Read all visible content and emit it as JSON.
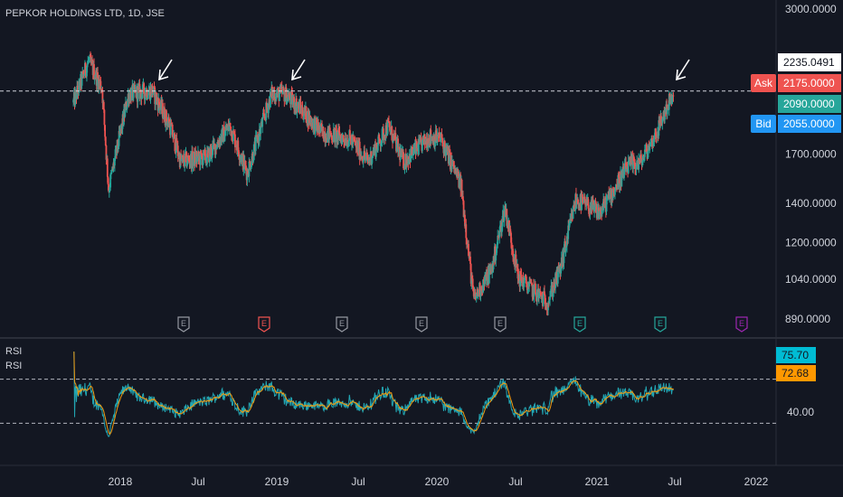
{
  "header": {
    "symbol_title": "PEPKOR HOLDINGS LTD, 1D, JSE"
  },
  "rsi_pane": {
    "label_1": "RSI",
    "label_2": "RSI"
  },
  "colors": {
    "background": "#131722",
    "up": "#26a69a",
    "down": "#ef5350",
    "rsi_line": "#22a6b3",
    "rsi_signal": "#f39c12",
    "ask": "#ef5350",
    "bid": "#2196f3",
    "last": "#26a69a"
  },
  "price_axis": {
    "ticks": [
      "3000.0000",
      "1700.0000",
      "1400.0000",
      "1200.0000",
      "1040.0000",
      "890.0000"
    ],
    "tick_values": [
      3000,
      1700,
      1400,
      1200,
      1040,
      890
    ],
    "labels": [
      {
        "kind": "crosshair",
        "text": "2235.0491",
        "value": 2235.0491
      },
      {
        "kind": "ask",
        "label": "Ask",
        "text": "2175.0000",
        "value": 2175
      },
      {
        "kind": "last",
        "text": "2090.0000",
        "value": 2090
      },
      {
        "kind": "bid",
        "label": "Bid",
        "text": "2055.0000",
        "value": 2055
      }
    ],
    "partial_hidden_tick": "2235.0000"
  },
  "rsi_axis": {
    "ticks": [
      "40.00"
    ],
    "tick_values": [
      40
    ],
    "current_rsi": "75.70",
    "current_signal": "72.68",
    "levels": [
      70,
      30
    ]
  },
  "time_axis": {
    "labels": [
      "2018",
      "Jul",
      "2019",
      "Jul",
      "2020",
      "Jul",
      "2021",
      "Jul",
      "2022"
    ]
  },
  "earnings_markers": [
    {
      "label": "E",
      "color": "#9598a1"
    },
    {
      "label": "E",
      "color": "#ef5350"
    },
    {
      "label": "E",
      "color": "#9598a1"
    },
    {
      "label": "E",
      "color": "#9598a1"
    },
    {
      "label": "E",
      "color": "#9598a1"
    },
    {
      "label": "E",
      "color": "#26a69a"
    },
    {
      "label": "E",
      "color": "#26a69a"
    },
    {
      "label": "E",
      "color": "#9c27b0"
    }
  ],
  "annotations": {
    "resistance_level": 2175,
    "arrows": 3
  },
  "chart_data": {
    "type": "candlestick",
    "x_range": [
      "2017-09",
      "2022-01"
    ],
    "y_scale": "log",
    "ylim": [
      890,
      3000
    ],
    "horizontal_line": 2175,
    "price_path": [
      [
        "2017-09-15",
        2080
      ],
      [
        "2017-10-20",
        2450
      ],
      [
        "2017-11-20",
        2200
      ],
      [
        "2017-12-05",
        1480
      ],
      [
        "2018-01-20",
        2150
      ],
      [
        "2018-03-15",
        2180
      ],
      [
        "2018-04-25",
        1900
      ],
      [
        "2018-05-20",
        1650
      ],
      [
        "2018-07-20",
        1680
      ],
      [
        "2018-09-10",
        1900
      ],
      [
        "2018-10-20",
        1580
      ],
      [
        "2018-12-15",
        2150
      ],
      [
        "2019-01-15",
        2150
      ],
      [
        "2019-02-15",
        2050
      ],
      [
        "2019-04-10",
        1850
      ],
      [
        "2019-06-15",
        1800
      ],
      [
        "2019-07-25",
        1650
      ],
      [
        "2019-09-10",
        1900
      ],
      [
        "2019-10-15",
        1650
      ],
      [
        "2019-12-15",
        1820
      ],
      [
        "2020-01-10",
        1800
      ],
      [
        "2020-02-25",
        1500
      ],
      [
        "2020-03-25",
        960
      ],
      [
        "2020-05-05",
        1080
      ],
      [
        "2020-06-05",
        1380
      ],
      [
        "2020-07-05",
        1050
      ],
      [
        "2020-09-10",
        950
      ],
      [
        "2020-10-10",
        1080
      ],
      [
        "2020-11-15",
        1420
      ],
      [
        "2021-01-10",
        1350
      ],
      [
        "2021-03-15",
        1620
      ],
      [
        "2021-04-15",
        1650
      ],
      [
        "2021-05-20",
        1850
      ],
      [
        "2021-06-20",
        2100
      ],
      [
        "2021-06-28",
        2090
      ]
    ],
    "rsi_range": [
      0,
      100
    ]
  }
}
